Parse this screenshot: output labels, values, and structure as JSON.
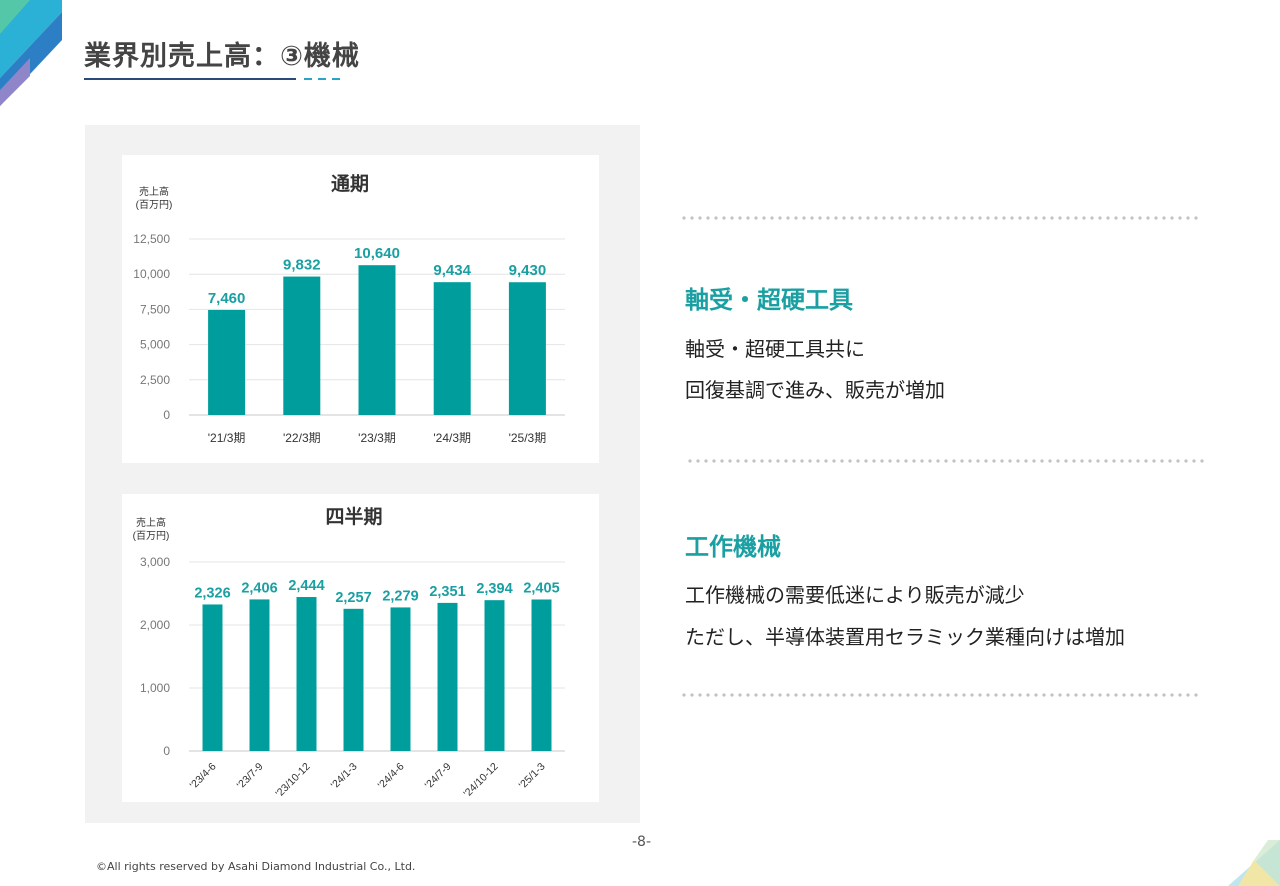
{
  "page": {
    "title": "業界別売上高：③機械",
    "page_number": "-8-",
    "copyright": "©All rights reserved by Asahi Diamond Industrial Co., Ltd."
  },
  "colors": {
    "bar": "#009d9d",
    "label": "#1a9fa2",
    "accent_navy": "#2a4a7a",
    "accent_teal": "#29a3c7"
  },
  "sections": [
    {
      "title": "軸受・超硬工具",
      "lines": [
        "軸受・超硬工具共に",
        "回復基調で進み、販売が増加"
      ]
    },
    {
      "title": "工作機械",
      "lines": [
        "工作機械の需要低迷により販売が減少",
        "ただし、半導体装置用セラミック業種向けは増加"
      ]
    }
  ],
  "chart_data": [
    {
      "type": "bar",
      "title": "通期",
      "ylabel": [
        "売上高",
        "(百万円)"
      ],
      "xlabel": "",
      "categories": [
        "'21/3期",
        "'22/3期",
        "'23/3期",
        "'24/3期",
        "'25/3期"
      ],
      "values": [
        7460,
        9832,
        10640,
        9434,
        9430
      ],
      "value_labels": [
        "7,460",
        "9,832",
        "10,640",
        "9,434",
        "9,430"
      ],
      "ylim": [
        0,
        12500
      ],
      "yticks": [
        0,
        2500,
        5000,
        7500,
        10000,
        12500
      ],
      "ytick_labels": [
        "0",
        "2,500",
        "5,000",
        "7,500",
        "10,000",
        "12,500"
      ],
      "grid": true,
      "legend": "none"
    },
    {
      "type": "bar",
      "title": "四半期",
      "ylabel": [
        "売上高",
        "(百万円)"
      ],
      "xlabel": "",
      "categories": [
        "'23/4-6",
        "'23/7-9",
        "'23/10-12",
        "'24/1-3",
        "'24/4-6",
        "'24/7-9",
        "'24/10-12",
        "'25/1-3"
      ],
      "values": [
        2326,
        2406,
        2444,
        2257,
        2279,
        2351,
        2394,
        2405
      ],
      "value_labels": [
        "2,326",
        "2,406",
        "2,444",
        "2,257",
        "2,279",
        "2,351",
        "2,394",
        "2,405"
      ],
      "ylim": [
        0,
        3000
      ],
      "yticks": [
        0,
        1000,
        2000,
        3000
      ],
      "ytick_labels": [
        "0",
        "1,000",
        "2,000",
        "3,000"
      ],
      "grid": true,
      "legend": "none"
    }
  ]
}
